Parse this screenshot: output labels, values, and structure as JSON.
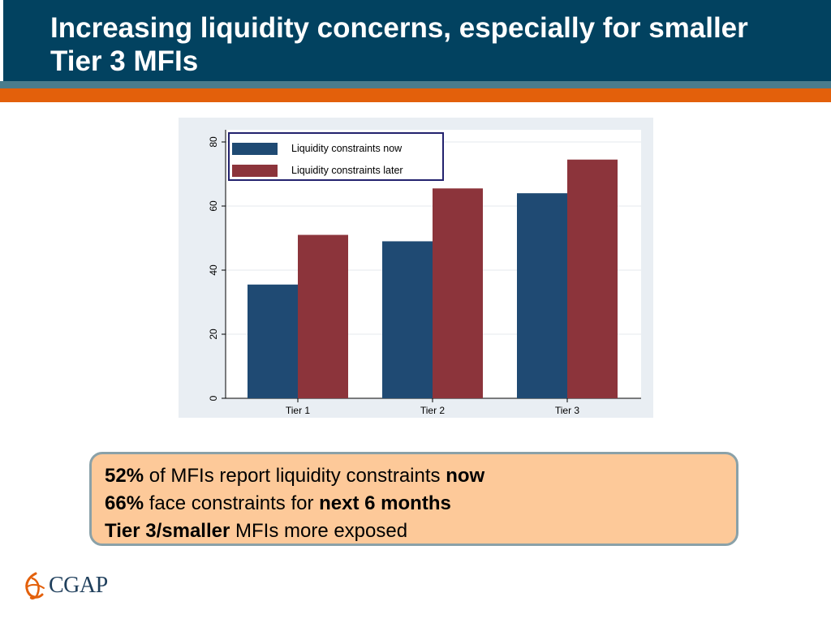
{
  "title": "Increasing liquidity concerns, especially for smaller Tier 3 MFIs",
  "colors": {
    "header": "#024260",
    "accent_orange": "#e3600b",
    "accent_teal": "#4a7c8c",
    "series_now": "#1f4a73",
    "series_later": "#8c343b",
    "callout_fill": "#fdc999"
  },
  "chart_data": {
    "type": "bar",
    "categories": [
      "Tier 1",
      "Tier 2",
      "Tier 3"
    ],
    "series": [
      {
        "name": "Liquidity constraints now",
        "values": [
          35.5,
          49,
          64
        ]
      },
      {
        "name": "Liquidity constraints later",
        "values": [
          51,
          65.5,
          74.5
        ]
      }
    ],
    "ylim": [
      0,
      80
    ],
    "yticks": [
      0,
      20,
      40,
      60,
      80
    ],
    "ytick_labels": [
      "0",
      "20",
      "40",
      "60",
      "80"
    ],
    "grid": true,
    "legend_position": "top-left"
  },
  "callout": {
    "line1_bold": "52%",
    "line1_text": " of MFIs report liquidity constraints ",
    "line1_bold_end": "now",
    "line2_bold": "66%",
    "line2_text": " face constraints for ",
    "line2_bold_end": "next 6 months",
    "line3_bold": "Tier 3/smaller",
    "line3_text": " MFIs more exposed"
  },
  "logo": {
    "text": "CGAP",
    "icon": "cgap-swirl-icon"
  }
}
